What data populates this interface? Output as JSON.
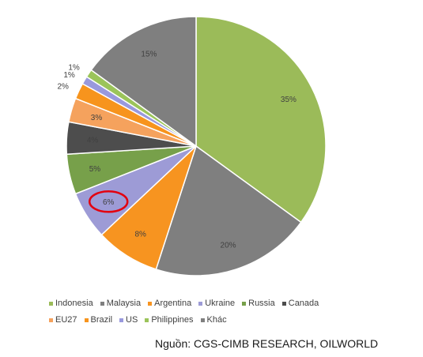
{
  "chart_data": {
    "type": "pie",
    "slices": [
      {
        "name": "Indonesia",
        "value": 35,
        "label": "35%",
        "color": "#9BBB59"
      },
      {
        "name": "Malaysia",
        "value": 20,
        "label": "20%",
        "color": "#7F7F7F"
      },
      {
        "name": "Argentina",
        "value": 8,
        "label": "8%",
        "color": "#F79420"
      },
      {
        "name": "Ukraine",
        "value": 6,
        "label": "6%",
        "color": "#9D9BD6"
      },
      {
        "name": "Russia",
        "value": 5,
        "label": "5%",
        "color": "#77A04A"
      },
      {
        "name": "Canada",
        "value": 4,
        "label": "4%",
        "color": "#4D4D4D"
      },
      {
        "name": "EU27",
        "value": 3,
        "label": "3%",
        "color": "#F5A25D"
      },
      {
        "name": "Brazil",
        "value": 2,
        "label": "2%",
        "color": "#F7941D"
      },
      {
        "name": "US",
        "value": 1,
        "label": "1%",
        "color": "#9999DD"
      },
      {
        "name": "Philippines",
        "value": 1,
        "label": "1%",
        "color": "#9BC45A"
      },
      {
        "name": "Khác",
        "value": 15,
        "label": "15%",
        "color": "#7F7F7F"
      }
    ],
    "highlighted_slice": "Ukraine",
    "highlight_color": "#E3000F",
    "legend_placement": "bottom"
  },
  "legend": {
    "rows": [
      [
        {
          "label": "Indonesia",
          "color": "#9BBB59"
        },
        {
          "label": "Malaysia",
          "color": "#7F7F7F"
        },
        {
          "label": "Argentina",
          "color": "#F79420"
        },
        {
          "label": "Ukraine",
          "color": "#9D9BD6"
        },
        {
          "label": "Russia",
          "color": "#77A04A"
        },
        {
          "label": "Canada",
          "color": "#4D4D4D"
        }
      ],
      [
        {
          "label": "EU27",
          "color": "#F5A25D"
        },
        {
          "label": "Brazil",
          "color": "#F7941D"
        },
        {
          "label": "US",
          "color": "#9999DD"
        },
        {
          "label": "Philippines",
          "color": "#9BC45A"
        },
        {
          "label": "Khác",
          "color": "#7F7F7F"
        }
      ]
    ]
  },
  "source_text": "Nguồn: CGS-CIMB RESEARCH, OILWORLD"
}
